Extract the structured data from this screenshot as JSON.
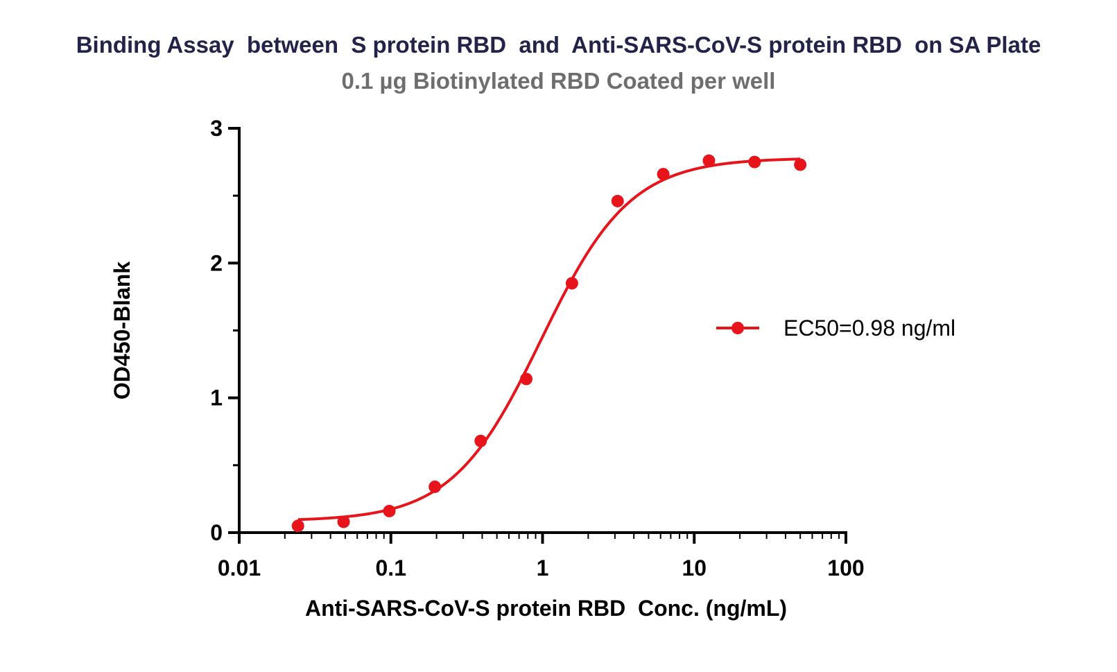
{
  "chart_data": {
    "type": "scatter",
    "title": "Binding Assay  between  S protein RBD  and  Anti-SARS-CoV-S protein RBD  on SA Plate",
    "subtitle": "0.1 µg Biotinylated RBD Coated per well",
    "xlabel": "Anti-SARS-CoV-S protein RBD  Conc. (ng/mL)",
    "ylabel": "OD450-Blank",
    "xscale": "log",
    "xlim": [
      0.01,
      100
    ],
    "ylim": [
      0,
      3
    ],
    "x_ticks": [
      "0.01",
      "0.1",
      "1",
      "10",
      "100"
    ],
    "y_ticks": [
      "0",
      "1",
      "2",
      "3"
    ],
    "grid": false,
    "legend_position": "right",
    "series": [
      {
        "name": "EC50=0.98 ng/ml",
        "color": "#e8141c",
        "marker": "circle",
        "fit": "4PL sigmoid",
        "x": [
          0.0244,
          0.0488,
          0.0977,
          0.195,
          0.391,
          0.781,
          1.5625,
          3.125,
          6.25,
          12.5,
          25,
          50
        ],
        "y": [
          0.05,
          0.08,
          0.16,
          0.34,
          0.68,
          1.14,
          1.85,
          2.46,
          2.66,
          2.76,
          2.75,
          2.73
        ]
      }
    ]
  }
}
